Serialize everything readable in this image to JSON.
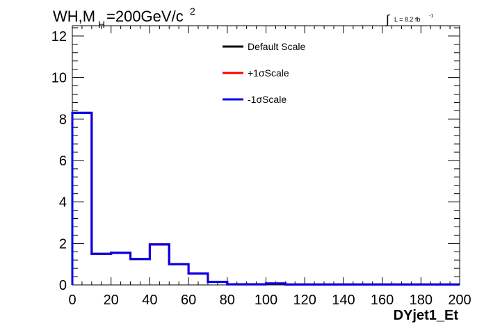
{
  "chart_data": {
    "type": "line",
    "title_main": "WH,M",
    "title_sub": "H",
    "title_rest": "=200GeV/c",
    "title_sup": "2",
    "lumi_integral": "∫",
    "lumi_text": "L = 8.2 fb",
    "lumi_sup": "-1",
    "xlabel": "DYjet1_Et",
    "ylabel": "",
    "xlim": [
      0,
      200
    ],
    "ylim": [
      0,
      12.5
    ],
    "x_ticks": [
      "0",
      "20",
      "40",
      "60",
      "80",
      "100",
      "120",
      "140",
      "160",
      "180",
      "200"
    ],
    "y_ticks": [
      "0",
      "2",
      "4",
      "6",
      "8",
      "10",
      "12"
    ],
    "bin_edges": [
      0,
      10,
      20,
      30,
      40,
      50,
      60,
      70,
      80,
      90,
      100,
      110,
      120,
      130,
      140,
      150,
      160,
      170,
      180,
      190,
      200
    ],
    "legend_position": "top-center",
    "series": [
      {
        "name": "Default Scale",
        "color": "#000000",
        "values": [
          8.3,
          1.5,
          1.55,
          1.25,
          1.95,
          1.0,
          0.55,
          0.15,
          0.03,
          0.03,
          0.07,
          0.02,
          0.02,
          0.02,
          0.02,
          0.02,
          0.02,
          0.02,
          0.02,
          0.02
        ]
      },
      {
        "name": "+1σScale",
        "color": "#ff0000",
        "values": [
          8.3,
          1.5,
          1.55,
          1.25,
          1.95,
          1.0,
          0.55,
          0.15,
          0.03,
          0.03,
          0.07,
          0.02,
          0.02,
          0.02,
          0.02,
          0.02,
          0.02,
          0.02,
          0.02,
          0.02
        ]
      },
      {
        "name": "-1σScale",
        "color": "#0000ee",
        "values": [
          8.3,
          1.5,
          1.55,
          1.25,
          1.95,
          1.0,
          0.55,
          0.15,
          0.03,
          0.03,
          0.07,
          0.02,
          0.02,
          0.02,
          0.02,
          0.02,
          0.02,
          0.02,
          0.02,
          0.02
        ]
      }
    ]
  }
}
